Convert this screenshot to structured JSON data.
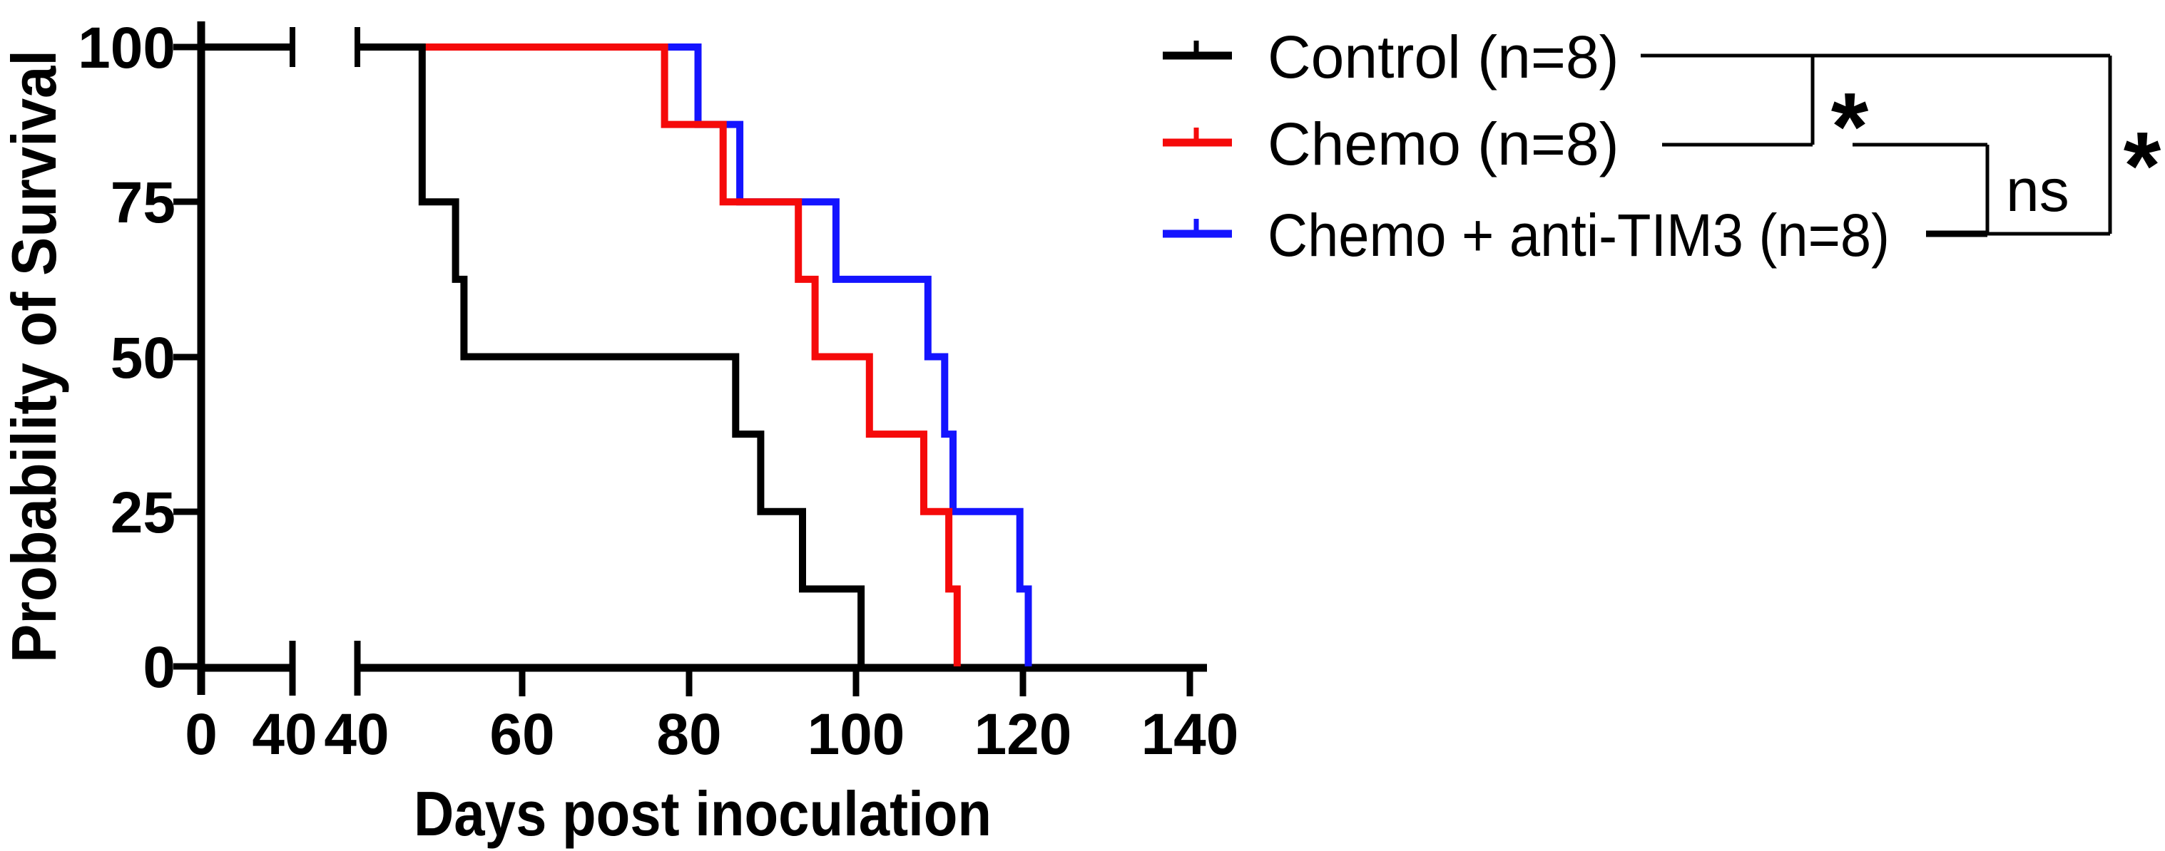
{
  "chart_data": {
    "type": "line",
    "subtype": "kaplan-meier-survival-step-curve",
    "title": "",
    "xlabel": "Days post inoculation",
    "ylabel": "Probability of Survival",
    "ylim": [
      0,
      100
    ],
    "y_ticks": [
      100,
      75,
      50,
      25,
      0
    ],
    "x_axis_break": true,
    "x_segments": [
      [
        0,
        40
      ],
      [
        40,
        140
      ]
    ],
    "x_tick_values": [
      0,
      40,
      40,
      60,
      80,
      100,
      120,
      140
    ],
    "grid": false,
    "legend_position": "top-right",
    "series": [
      {
        "id": "control",
        "name": "Control (n=8)",
        "color": "#000000",
        "n": 8,
        "start": [
          40,
          100
        ],
        "points": [
          [
            48,
            75
          ],
          [
            52,
            62.5
          ],
          [
            53,
            50
          ],
          [
            85.5,
            37.5
          ],
          [
            88.5,
            25
          ],
          [
            93.5,
            12.5
          ],
          [
            100.5,
            0
          ]
        ],
        "event_days": [
          48,
          48,
          52,
          53,
          85.5,
          88.5,
          93.5,
          100.5
        ]
      },
      {
        "id": "chemo",
        "name": "Chemo (n=8)",
        "color": "#f50a0a",
        "n": 8,
        "start": [
          40,
          100
        ],
        "points": [
          [
            77,
            87.5
          ],
          [
            84,
            75
          ],
          [
            93,
            62.5
          ],
          [
            95,
            50
          ],
          [
            101.5,
            37.5
          ],
          [
            108,
            25
          ],
          [
            111,
            12.5
          ],
          [
            112,
            0
          ]
        ],
        "event_days": [
          77,
          84,
          93,
          95,
          101.5,
          108,
          111,
          112
        ]
      },
      {
        "id": "chemo-anti-tim3",
        "name": "Chemo + anti-TIM3 (n=8)",
        "color": "#1414ff",
        "n": 8,
        "start": [
          40,
          100
        ],
        "points": [
          [
            81,
            87.5
          ],
          [
            86,
            75
          ],
          [
            97.5,
            62.5
          ],
          [
            108.5,
            50
          ],
          [
            110.5,
            37.5
          ],
          [
            111.5,
            25
          ],
          [
            119.5,
            12.5
          ],
          [
            120.5,
            0
          ]
        ],
        "event_days": [
          81,
          86,
          97.5,
          108.5,
          110.5,
          111.5,
          119.5,
          120.5
        ]
      }
    ],
    "significance": [
      {
        "groups": [
          "Control (n=8)",
          "Chemo (n=8)"
        ],
        "label": "*"
      },
      {
        "groups": [
          "Chemo (n=8)",
          "Chemo + anti-TIM3 (n=8)"
        ],
        "label": "ns"
      },
      {
        "groups": [
          "Control (n=8)",
          "Chemo + anti-TIM3 (n=8)"
        ],
        "label": "*"
      }
    ]
  },
  "axes": {
    "x": {
      "title": "Days post inoculation",
      "tick_labels": [
        "0",
        "40",
        "40",
        "60",
        "80",
        "100",
        "120",
        "140"
      ]
    },
    "y": {
      "title": "Probability of Survival",
      "tick_labels": [
        "100",
        "75",
        "50",
        "25",
        "0"
      ]
    }
  },
  "legend": {
    "items": [
      {
        "label": "Control (n=8)",
        "color": "#000000"
      },
      {
        "label": "Chemo (n=8)",
        "color": "#f50a0a"
      },
      {
        "label": "Chemo + anti-TIM3 (n=8)",
        "color": "#1414ff"
      }
    ]
  },
  "annotations": {
    "sig_control_chemo": "*",
    "sig_chemo_tim3": "ns",
    "sig_control_tim3": "*"
  }
}
